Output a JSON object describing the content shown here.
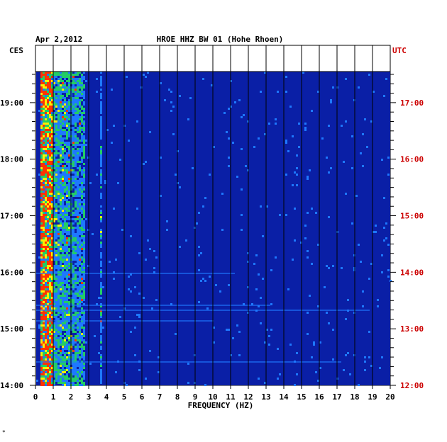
{
  "header": {
    "date": "Apr 2,2012",
    "station": "HROE HHZ BW 01 (Hohe Rhoen)",
    "left_tz": "CES",
    "right_tz": "UTC"
  },
  "footer_mark": "*",
  "colors": {
    "background": "#0a1fa6",
    "left_axis_text": "#000000",
    "right_axis_text": "#cc0000",
    "hot": "#ff3300",
    "warm": "#ffee00",
    "mid": "#22cc66",
    "cool": "#1e78ff"
  },
  "chart_data": {
    "type": "heatmap",
    "title": "HROE HHZ BW 01 (Hohe Rhoen)",
    "xlabel": "FREQUENCY (HZ)",
    "x_ticks": [
      "0",
      "1",
      "2",
      "3",
      "4",
      "5",
      "6",
      "7",
      "8",
      "9",
      "10",
      "11",
      "12",
      "13",
      "14",
      "15",
      "16",
      "17",
      "18",
      "19",
      "20"
    ],
    "xlim": [
      0,
      20
    ],
    "y_left_ticks": [
      "19:00",
      "18:00",
      "17:00",
      "16:00",
      "15:00",
      "14:00"
    ],
    "y_right_ticks": [
      "17:00",
      "16:00",
      "15:00",
      "14:00",
      "13:00",
      "12:00"
    ],
    "y_left_hours": [
      19,
      18,
      17,
      16,
      15,
      14
    ],
    "ylim_hours_left": [
      14,
      19.55
    ],
    "grid": true,
    "energy_bands_hz": [
      {
        "from": 0.2,
        "to": 1.0,
        "level": 0.95
      },
      {
        "from": 1.0,
        "to": 2.0,
        "level": 0.6
      },
      {
        "from": 2.0,
        "to": 2.8,
        "level": 0.55
      },
      {
        "from": 3.6,
        "to": 3.7,
        "level": 0.5
      },
      {
        "from": 4.85,
        "to": 4.95,
        "level": 0.45
      }
    ]
  }
}
